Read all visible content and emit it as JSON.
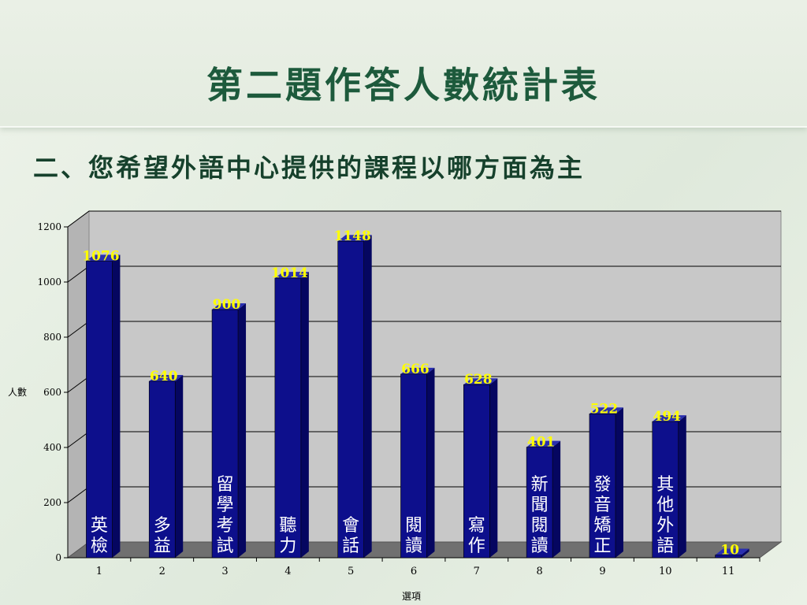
{
  "slide": {
    "title": "第二題作答人數統計表",
    "subtitle": "二、您希望外語中心提供的課程以哪方面為主"
  },
  "chart_data": {
    "type": "bar",
    "categories": [
      "1",
      "2",
      "3",
      "4",
      "5",
      "6",
      "7",
      "8",
      "9",
      "10",
      "11"
    ],
    "values": [
      1076,
      640,
      900,
      1014,
      1148,
      666,
      628,
      401,
      522,
      494,
      10
    ],
    "bar_labels": [
      [
        "英",
        "檢"
      ],
      [
        "多",
        "益"
      ],
      [
        "留",
        "學",
        "考",
        "試"
      ],
      [
        "聽",
        "力"
      ],
      [
        "會",
        "話"
      ],
      [
        "閱",
        "讀"
      ],
      [
        "寫",
        "作"
      ],
      [
        "新",
        "聞",
        "閱",
        "讀"
      ],
      [
        "發",
        "音",
        "矯",
        "正"
      ],
      [
        "其",
        "他",
        "外",
        "語"
      ],
      []
    ],
    "xlabel": "選項",
    "ylabel": "人數",
    "ylim": [
      0,
      1200
    ],
    "yticks": [
      0,
      200,
      400,
      600,
      800,
      1000,
      1200
    ],
    "grid": true,
    "legend": "none",
    "colors": {
      "bar_front": "#0d0f8c",
      "bar_side": "#050660",
      "bar_top": "#2a2fb0",
      "wall": "#c8c8c8",
      "floor": "#707070",
      "value_label": "#ffff00",
      "bar_text": "#ffffff"
    }
  }
}
